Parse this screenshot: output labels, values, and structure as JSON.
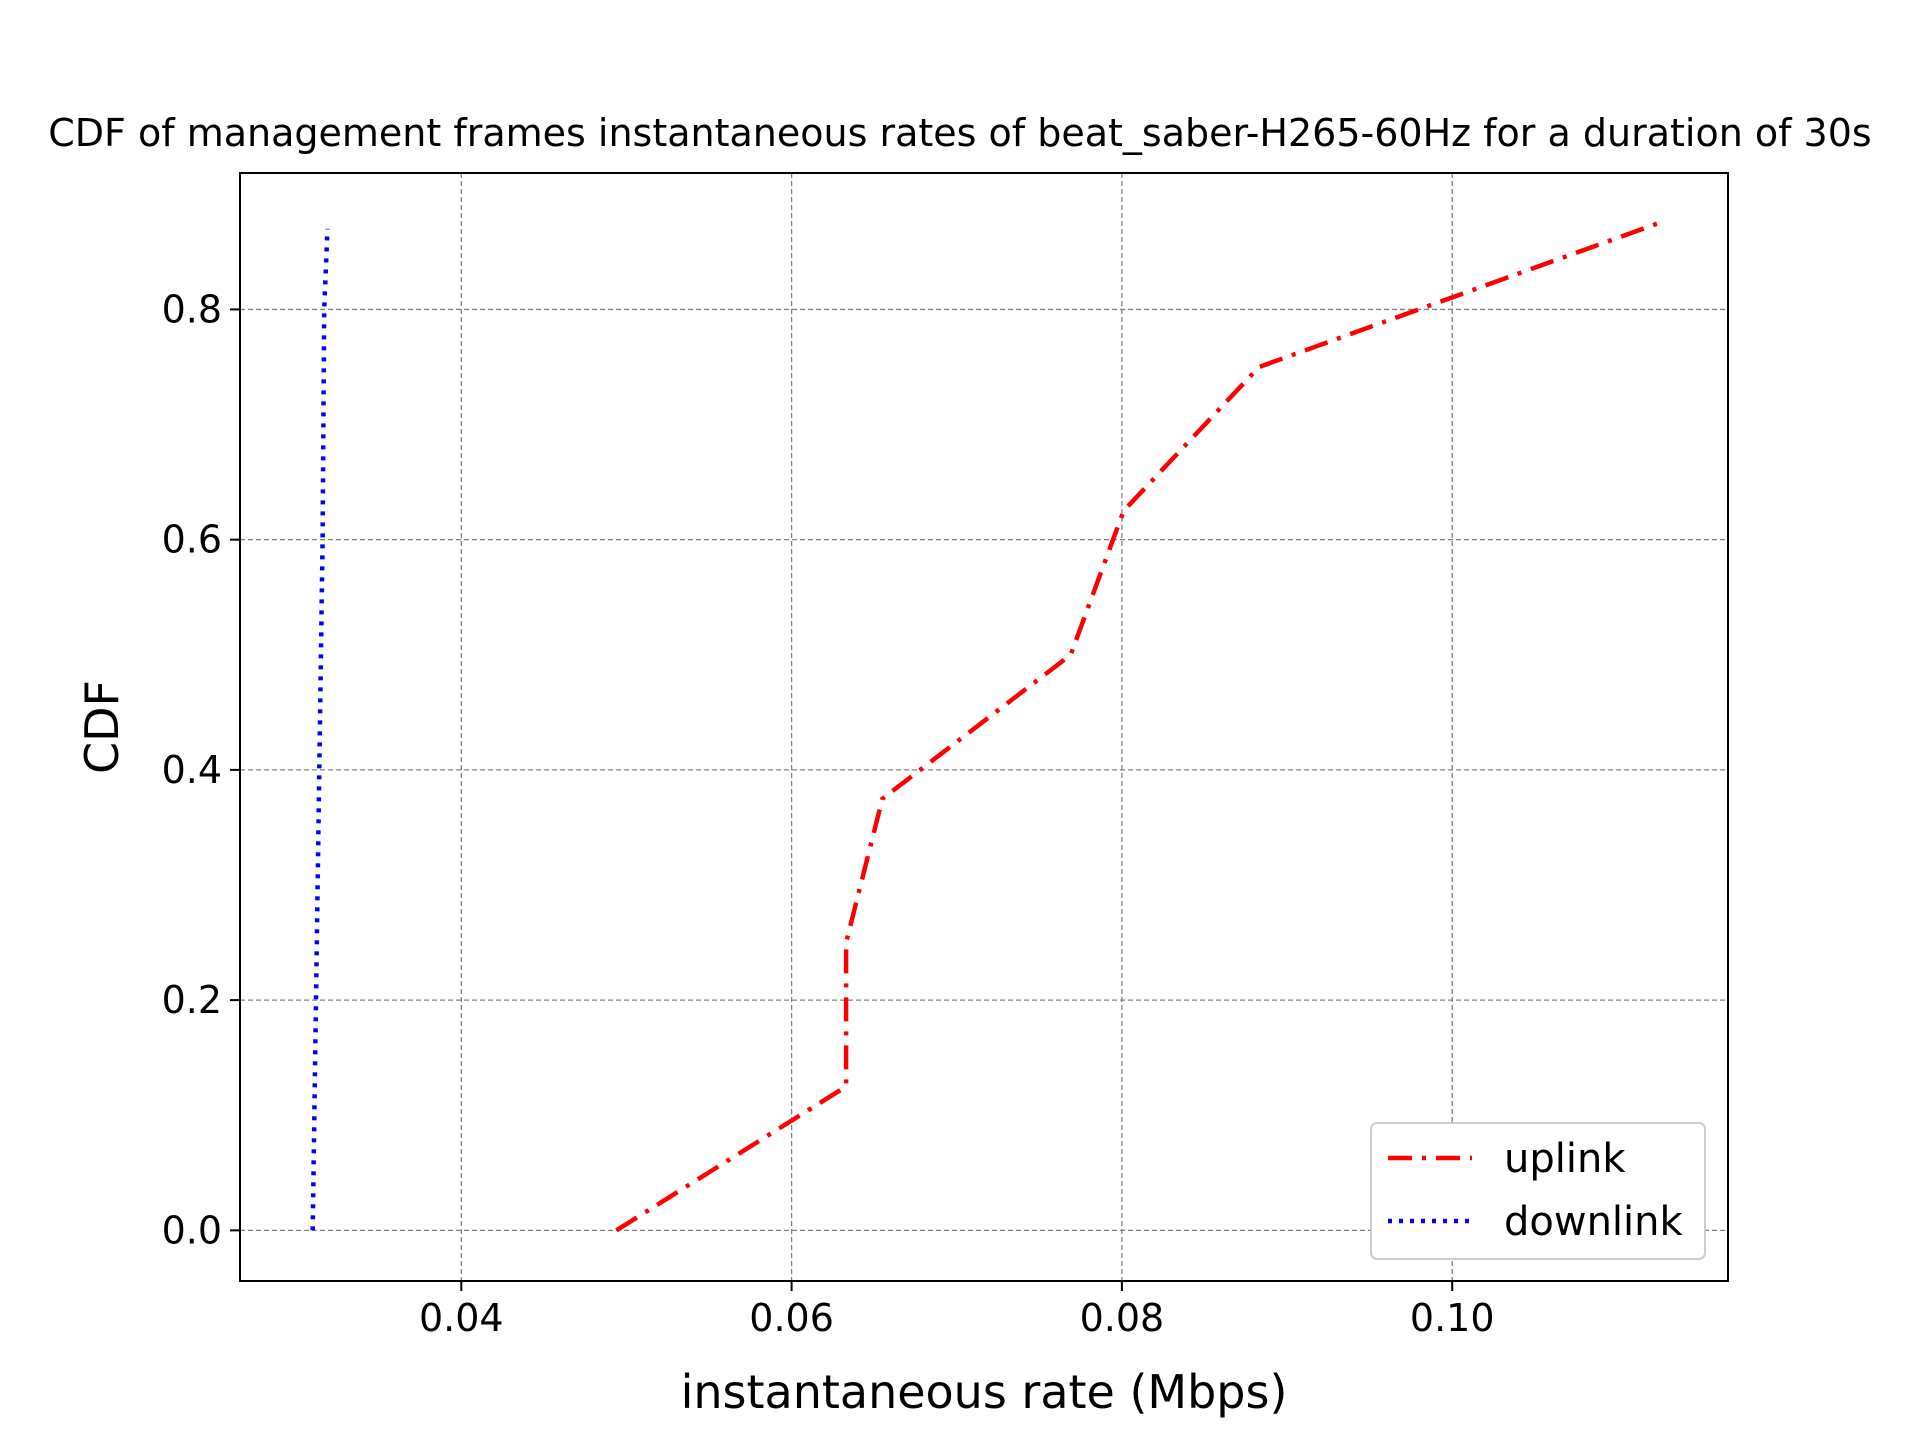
{
  "chart_data": {
    "type": "line",
    "title": "CDF of management frames instantaneous rates of beat_saber-H265-60Hz for a duration of 30s",
    "xlabel": "instantaneous rate (Mbps)",
    "ylabel": "CDF",
    "xlim": [
      0.0266,
      0.1167
    ],
    "ylim": [
      -0.044,
      0.9185
    ],
    "xticks": [
      0.04,
      0.06,
      0.08,
      0.1
    ],
    "xtick_labels": [
      "0.04",
      "0.06",
      "0.08",
      "0.10"
    ],
    "yticks": [
      0.0,
      0.2,
      0.4,
      0.6,
      0.8
    ],
    "ytick_labels": [
      "0.0",
      "0.2",
      "0.4",
      "0.6",
      "0.8"
    ],
    "grid": true,
    "legend_position": "bottom-right",
    "series": [
      {
        "name": "uplink",
        "color": "#ff0000",
        "style": "dash-dot",
        "x": [
          0.0494,
          0.0633,
          0.0633,
          0.0655,
          0.0769,
          0.0801,
          0.0883,
          0.1125
        ],
        "y": [
          0.0,
          0.125,
          0.25,
          0.375,
          0.5,
          0.625,
          0.75,
          0.875
        ]
      },
      {
        "name": "downlink",
        "color": "#0000ff",
        "style": "dotted",
        "x": [
          0.031,
          0.0312,
          0.0314,
          0.0316,
          0.0317,
          0.0319
        ],
        "y": [
          0.0,
          0.2,
          0.4,
          0.6,
          0.8,
          0.87
        ]
      }
    ]
  }
}
